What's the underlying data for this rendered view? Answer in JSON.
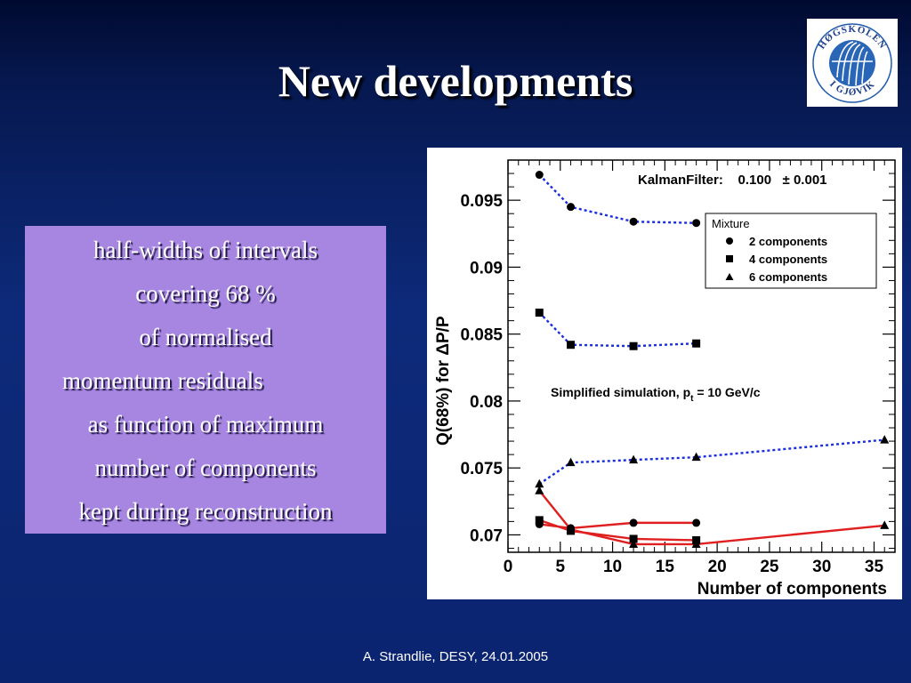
{
  "slide": {
    "title": "New developments",
    "footer": "A. Strandlie, DESY, 24.01.2005"
  },
  "logo": {
    "text_top": "HØGSKOLEN",
    "text_bottom": "I GJØVIK",
    "color": "#1f5aa8",
    "icon": "college-seal-icon"
  },
  "textbox": {
    "lines": [
      "half-widths of intervals",
      "covering 68 %",
      "of normalised",
      "momentum residuals",
      "as function of maximum",
      "number of components",
      "kept during reconstruction"
    ],
    "background": "#a686e0"
  },
  "chart_data": {
    "type": "line",
    "xlabel": "Number of components",
    "ylabel": "Q(68%) for ΔP/P",
    "xlim": [
      0,
      37
    ],
    "ylim": [
      0.0687,
      0.098
    ],
    "x_ticks": [
      0,
      5,
      10,
      15,
      20,
      25,
      30,
      35
    ],
    "y_ticks": [
      0.07,
      0.075,
      0.08,
      0.085,
      0.09,
      0.095
    ],
    "y_tick_labels": [
      "0.07",
      "0.075",
      "0.08",
      "0.085",
      "0.09",
      "0.095"
    ],
    "grid": false,
    "annotations": {
      "kalman": "KalmanFilter:    0.100   ± 0.001",
      "simulation": "Simplified simulation, p",
      "simulation_sub": "t",
      "simulation_tail": " = 10 GeV/c"
    },
    "legend": {
      "title": "Mixture",
      "placement": "top-right",
      "entries": [
        "2 components",
        "4 components",
        "6 components"
      ]
    },
    "series": [
      {
        "name": "2 components",
        "marker": "circle",
        "style": "dotted",
        "color": "#1a2ee0",
        "points": [
          [
            3,
            0.0969
          ],
          [
            6,
            0.0945
          ],
          [
            12,
            0.0934
          ],
          [
            18,
            0.0933
          ]
        ]
      },
      {
        "name": "4 components",
        "marker": "square",
        "style": "dotted",
        "color": "#1a2ee0",
        "points": [
          [
            3,
            0.0866
          ],
          [
            6,
            0.0842
          ],
          [
            12,
            0.0841
          ],
          [
            18,
            0.0843
          ]
        ]
      },
      {
        "name": "6 components",
        "marker": "triangle",
        "style": "dotted",
        "color": "#1a2ee0",
        "points": [
          [
            3,
            0.0738
          ],
          [
            6,
            0.0754
          ],
          [
            12,
            0.0756
          ],
          [
            18,
            0.0758
          ],
          [
            36,
            0.0771
          ]
        ]
      },
      {
        "name": "2 components",
        "marker": "circle",
        "style": "solid",
        "color": "#e02020",
        "points": [
          [
            3,
            0.0708
          ],
          [
            6,
            0.0705
          ],
          [
            12,
            0.0709
          ],
          [
            18,
            0.0709
          ]
        ]
      },
      {
        "name": "4 components",
        "marker": "square",
        "style": "solid",
        "color": "#e02020",
        "points": [
          [
            3,
            0.0711
          ],
          [
            6,
            0.0703
          ],
          [
            12,
            0.0697
          ],
          [
            18,
            0.0696
          ]
        ]
      },
      {
        "name": "6 components",
        "marker": "triangle",
        "style": "solid",
        "color": "#e02020",
        "points": [
          [
            3,
            0.0733
          ],
          [
            6,
            0.0704
          ],
          [
            12,
            0.0693
          ],
          [
            18,
            0.0693
          ],
          [
            36,
            0.0707
          ]
        ]
      }
    ]
  }
}
